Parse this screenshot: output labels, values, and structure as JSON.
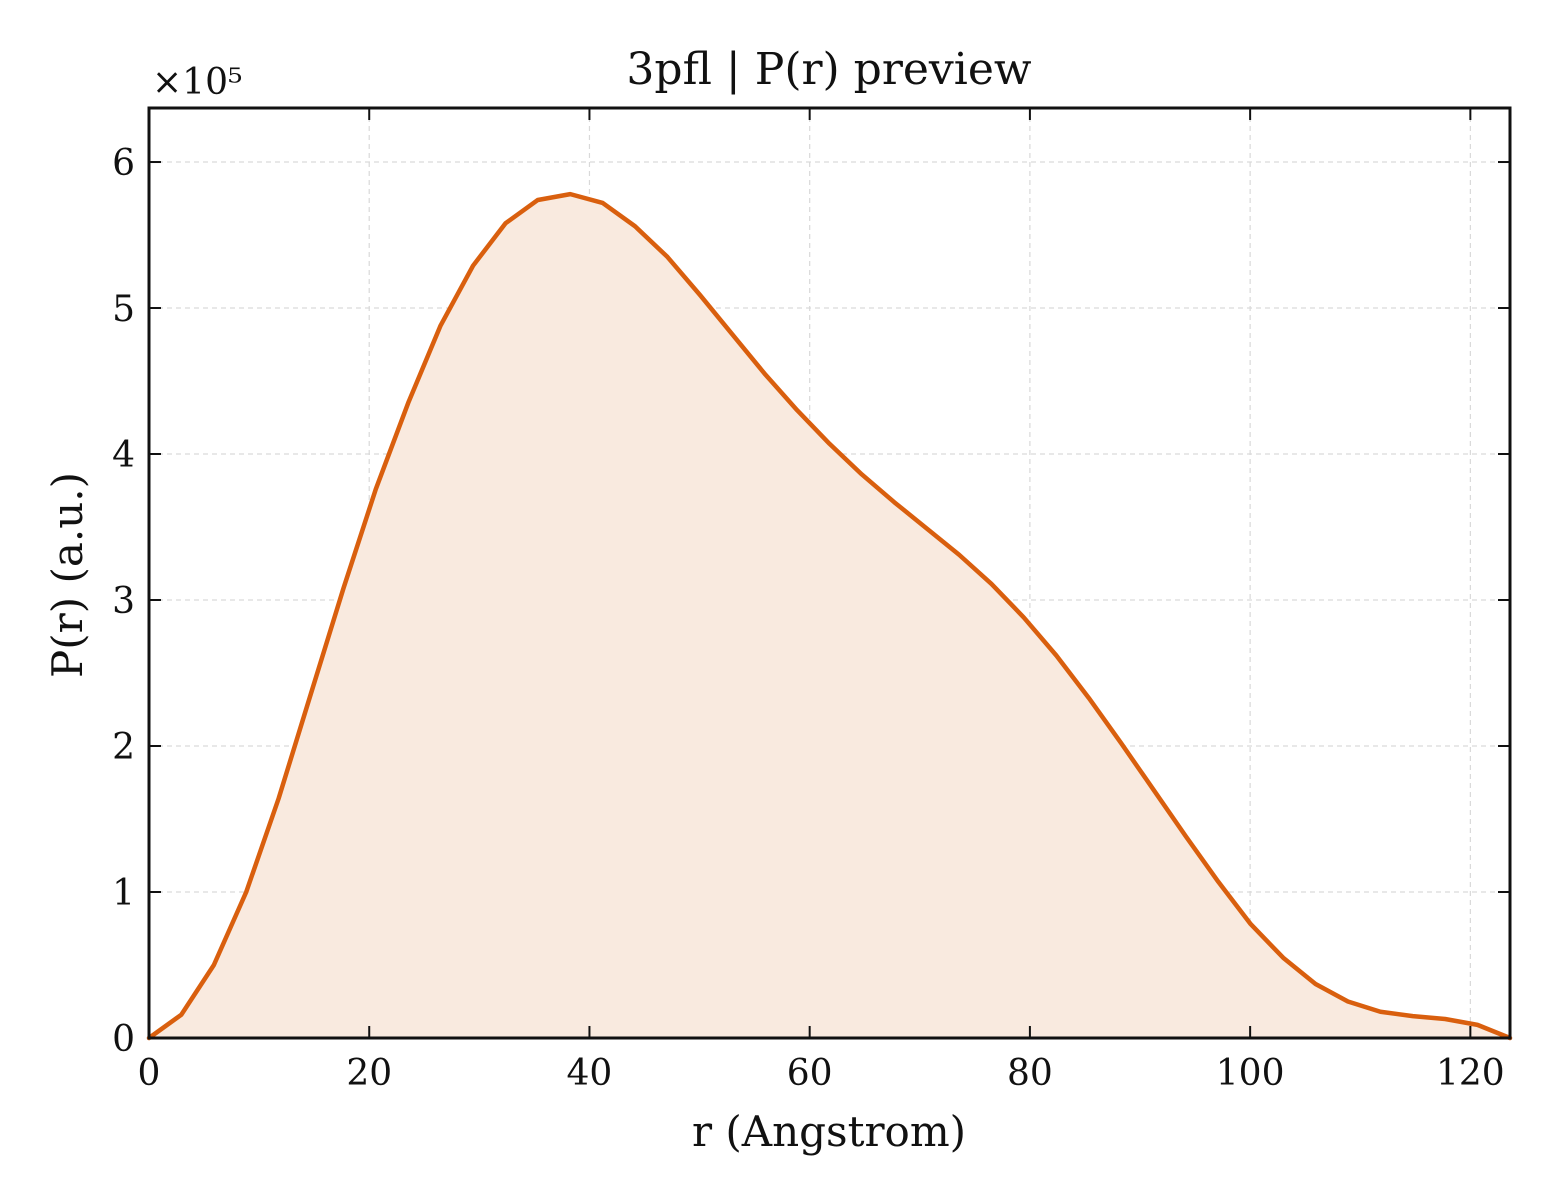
{
  "chart_data": {
    "type": "area",
    "title": "3pfl | P(r) preview",
    "xlabel": "r (Angstrom)",
    "ylabel": "P(r) (a.u.)",
    "y_multiplier_label": "×10⁵",
    "xlim": [
      0,
      123.6
    ],
    "ylim": [
      0,
      6.37
    ],
    "x_ticks": [
      0,
      20,
      40,
      60,
      80,
      100,
      120
    ],
    "x_tick_labels": [
      "0",
      "20",
      "40",
      "60",
      "80",
      "100",
      "120"
    ],
    "y_ticks": [
      0,
      1,
      2,
      3,
      4,
      5,
      6
    ],
    "y_tick_labels": [
      "0",
      "1",
      "2",
      "3",
      "4",
      "5",
      "6"
    ],
    "grid": true,
    "grid_style": "dashed",
    "line_color": "#d95f0e",
    "fill_color": "#f9eadf",
    "series": [
      {
        "x": [
          0,
          2.94,
          5.89,
          8.83,
          11.77,
          14.71,
          17.66,
          20.6,
          23.54,
          26.48,
          29.43,
          32.37,
          35.31,
          38.26,
          41.2,
          44.14,
          47.08,
          50.03,
          52.97,
          55.91,
          58.86,
          61.8,
          64.74,
          67.68,
          70.63,
          73.57,
          76.51,
          79.45,
          82.4,
          85.34,
          88.28,
          91.23,
          94.17,
          97.11,
          100.05,
          103.0,
          105.94,
          108.88,
          111.83,
          114.77,
          117.71,
          120.65,
          123.6
        ],
        "y": [
          0,
          0.16,
          0.5,
          1.0,
          1.64,
          2.36,
          3.08,
          3.76,
          4.35,
          4.88,
          5.29,
          5.58,
          5.74,
          5.78,
          5.72,
          5.56,
          5.35,
          5.09,
          4.82,
          4.55,
          4.3,
          4.07,
          3.86,
          3.67,
          3.49,
          3.31,
          3.11,
          2.88,
          2.62,
          2.33,
          2.02,
          1.7,
          1.38,
          1.07,
          0.78,
          0.55,
          0.37,
          0.25,
          0.18,
          0.15,
          0.13,
          0.09,
          0.0
        ]
      }
    ]
  }
}
